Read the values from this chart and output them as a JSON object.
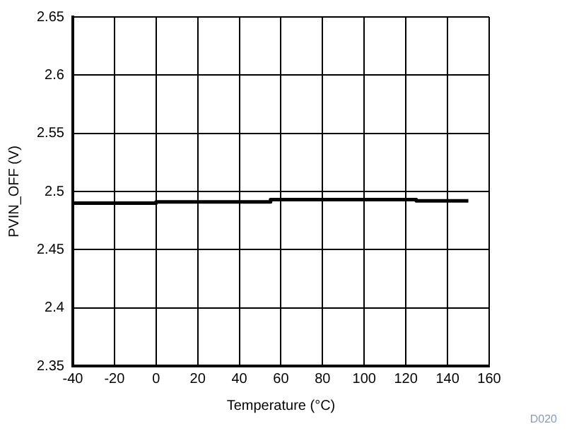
{
  "chart_data": {
    "type": "step",
    "xlabel": "Temperature (°C)",
    "ylabel": "PVIN_OFF (V)",
    "x": [
      -40,
      0,
      55,
      125,
      150
    ],
    "series": [
      {
        "color": "#000000",
        "values": [
          2.49,
          2.491,
          2.493,
          2.492,
          2.492
        ]
      }
    ],
    "xlim": [
      -40,
      160
    ],
    "xticks": [
      -40,
      -20,
      0,
      20,
      40,
      60,
      80,
      100,
      120,
      140,
      160
    ],
    "ylim": [
      2.35,
      2.65
    ],
    "yticks": [
      2.35,
      2.4,
      2.45,
      2.5,
      2.55,
      2.6,
      2.65
    ],
    "grid": true,
    "legend": false,
    "annotations": [
      "D020"
    ]
  }
}
